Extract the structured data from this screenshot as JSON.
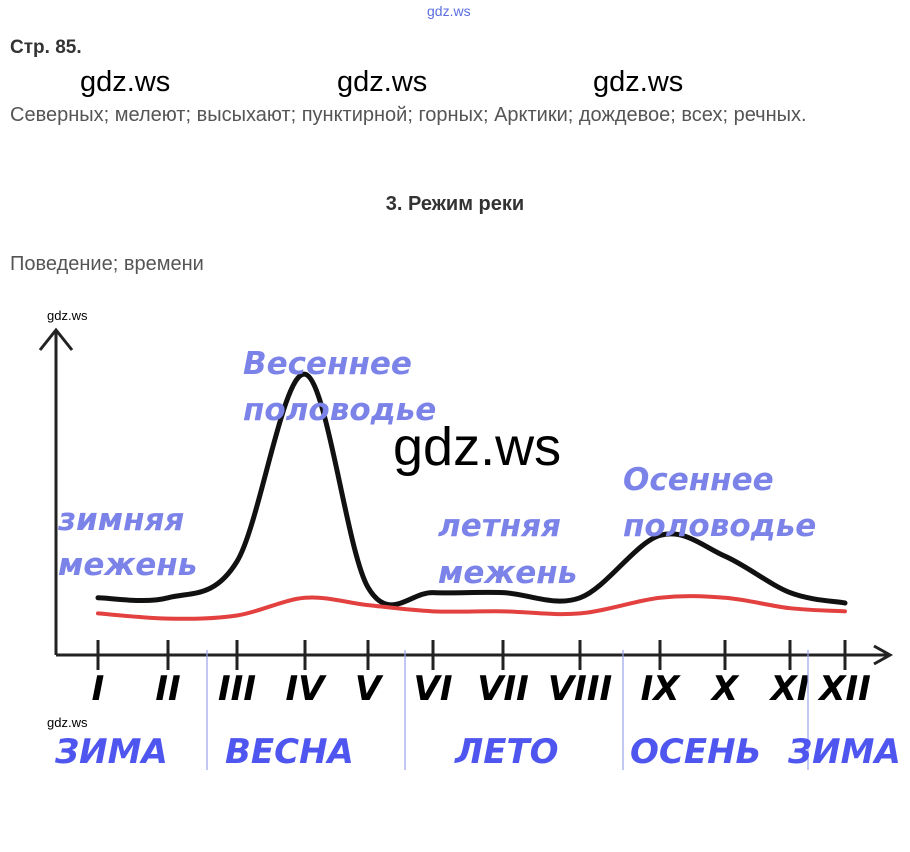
{
  "watermark": "gdz.ws",
  "page_ref": "Стр. 85.",
  "answer_line": "Северных; мелеют; высыхают; пунктирной; горных; Арктики; дождевое;  всех; речных.",
  "section_title": "3. Режим реки",
  "answer_line_2": "Поведение; времени",
  "chart_data": {
    "type": "line",
    "x": [
      "I",
      "II",
      "III",
      "IV",
      "V",
      "VI",
      "VII",
      "VIII",
      "IX",
      "X",
      "XI",
      "XII"
    ],
    "series": [
      {
        "color": "#111111",
        "values": [
          55,
          55,
          90,
          270,
          65,
          60,
          60,
          55,
          115,
          95,
          60,
          50
        ]
      },
      {
        "color": "#e34040",
        "values": [
          40,
          35,
          38,
          55,
          48,
          42,
          42,
          40,
          55,
          55,
          45,
          42
        ]
      }
    ],
    "ylim": [
      0,
      300
    ],
    "annotations": [
      {
        "text": "Весеннее",
        "line": 1,
        "group": "spring"
      },
      {
        "text": "половодье",
        "line": 2,
        "group": "spring"
      },
      {
        "text": "зимняя",
        "line": 1,
        "group": "winter"
      },
      {
        "text": "межень",
        "line": 2,
        "group": "winter"
      },
      {
        "text": "летняя",
        "line": 1,
        "group": "summer"
      },
      {
        "text": "межень",
        "line": 2,
        "group": "summer"
      },
      {
        "text": "Осеннее",
        "line": 1,
        "group": "autumn"
      },
      {
        "text": "половодье",
        "line": 2,
        "group": "autumn"
      }
    ],
    "seasons": [
      "ЗИМА",
      "ВЕСНА",
      "ЛЕТО",
      "ОСЕНЬ",
      "ЗИМА"
    ],
    "colors": {
      "axis": "#222222",
      "annotation": "#7b82e8",
      "season": "#4f56f0",
      "divider": "#9aa2ee"
    }
  }
}
